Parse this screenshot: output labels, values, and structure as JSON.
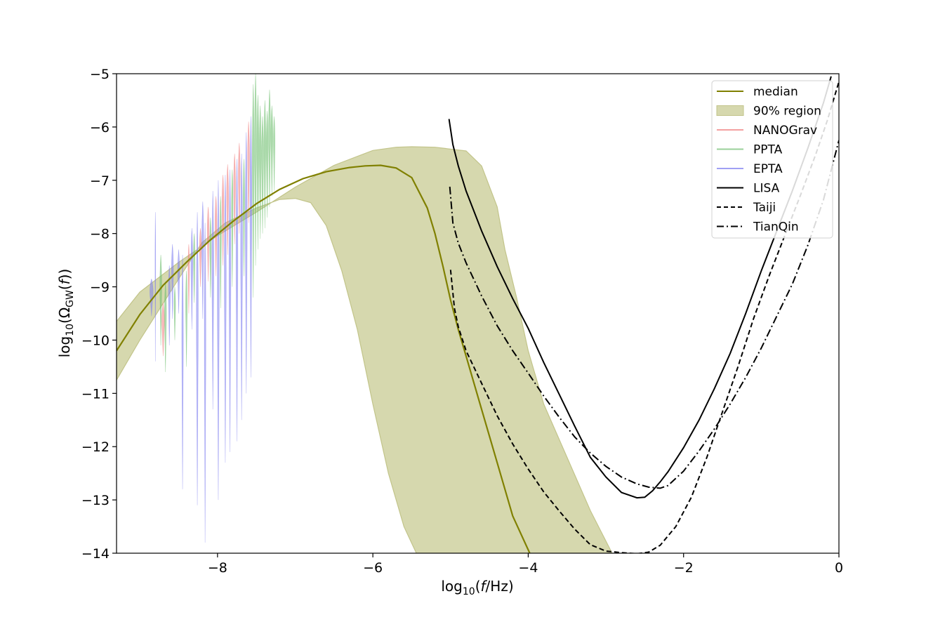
{
  "chart_data": {
    "type": "line",
    "xlabel_main": "log",
    "xlabel_sub": "10",
    "xlabel_rest_a": "(",
    "xlabel_italic": "f",
    "xlabel_rest_b": "/Hz)",
    "ylabel_main": "log",
    "ylabel_sub": "10",
    "ylabel_omega": "(Ω",
    "ylabel_gw": "GW",
    "ylabel_paren": "(",
    "ylabel_italic": "f",
    "ylabel_end": "))",
    "xlim": [
      -9.3,
      0
    ],
    "ylim": [
      -14,
      -5
    ],
    "xticks": [
      -8,
      -6,
      -4,
      -2,
      0
    ],
    "xtick_labels": [
      "−8",
      "−6",
      "−4",
      "−2",
      "0"
    ],
    "yticks": [
      -5,
      -6,
      -7,
      -8,
      -9,
      -10,
      -11,
      -12,
      -13,
      -14
    ],
    "ytick_labels": [
      "−5",
      "−6",
      "−7",
      "−8",
      "−9",
      "−10",
      "−11",
      "−12",
      "−13",
      "−14"
    ],
    "legend_position": "upper right",
    "legend": [
      {
        "label": "median",
        "kind": "line",
        "color": "#808000",
        "dash": ""
      },
      {
        "label": "90% region",
        "kind": "patch",
        "color": "#d6d8ae"
      },
      {
        "label": "NANOGrav",
        "kind": "line",
        "color": "#f4a0a0",
        "dash": ""
      },
      {
        "label": "PPTA",
        "kind": "line",
        "color": "#9ad09a",
        "dash": ""
      },
      {
        "label": "EPTA",
        "kind": "line",
        "color": "#a0a0f4",
        "dash": ""
      },
      {
        "label": "LISA",
        "kind": "line",
        "color": "#000000",
        "dash": ""
      },
      {
        "label": "Taiji",
        "kind": "line",
        "color": "#000000",
        "dash": "6,4"
      },
      {
        "label": "TianQin",
        "kind": "line",
        "color": "#000000",
        "dash": "10,4,2,4"
      }
    ],
    "series": [
      {
        "name": "median",
        "color": "#808000",
        "x": [
          -9.3,
          -9.0,
          -8.7,
          -8.4,
          -8.1,
          -7.8,
          -7.5,
          -7.2,
          -6.9,
          -6.6,
          -6.3,
          -6.1,
          -5.9,
          -5.7,
          -5.5,
          -5.3,
          -5.2,
          -5.1,
          -5.0,
          -4.9,
          -4.8,
          -4.6,
          -4.4,
          -4.2,
          -3.98
        ],
        "y": [
          -10.2,
          -9.52,
          -8.97,
          -8.54,
          -8.13,
          -7.77,
          -7.44,
          -7.17,
          -6.97,
          -6.84,
          -6.76,
          -6.73,
          -6.72,
          -6.77,
          -6.95,
          -7.52,
          -8.0,
          -8.6,
          -9.25,
          -9.8,
          -10.3,
          -11.3,
          -12.3,
          -13.3,
          -14.0
        ]
      },
      {
        "name": "90% region upper",
        "x": [
          -9.3,
          -9.0,
          -8.5,
          -8.0,
          -7.5,
          -7.0,
          -6.5,
          -6.0,
          -5.7,
          -5.5,
          -5.2,
          -4.8,
          -4.6,
          -4.4,
          -4.3,
          -4.15,
          -4.0,
          -3.8,
          -3.5,
          -3.2,
          -2.92
        ],
        "y": [
          -9.65,
          -9.1,
          -8.54,
          -8.04,
          -7.6,
          -7.13,
          -6.72,
          -6.44,
          -6.38,
          -6.37,
          -6.38,
          -6.45,
          -6.73,
          -7.5,
          -8.3,
          -9.2,
          -10.2,
          -11.2,
          -12.2,
          -13.2,
          -14.0
        ]
      },
      {
        "name": "90% region lower",
        "x": [
          -9.3,
          -9.0,
          -8.5,
          -8.2,
          -7.9,
          -7.5,
          -7.2,
          -7.0,
          -6.8,
          -6.6,
          -6.4,
          -6.2,
          -6.0,
          -5.8,
          -5.6,
          -5.44
        ],
        "y": [
          -10.75,
          -10.0,
          -8.85,
          -8.17,
          -7.8,
          -7.52,
          -7.36,
          -7.34,
          -7.42,
          -7.85,
          -8.7,
          -9.8,
          -11.2,
          -12.5,
          -13.5,
          -14.0
        ]
      },
      {
        "name": "LISA",
        "color": "#000000",
        "x": [
          -5.02,
          -4.97,
          -4.9,
          -4.8,
          -4.6,
          -4.4,
          -4.2,
          -4.0,
          -3.8,
          -3.6,
          -3.4,
          -3.2,
          -3.0,
          -2.8,
          -2.6,
          -2.5,
          -2.4,
          -2.3,
          -2.2,
          -2.0,
          -1.8,
          -1.6,
          -1.4,
          -1.2,
          -1.0,
          -0.8,
          -0.6,
          -0.4,
          -0.2,
          -0.1
        ],
        "y": [
          -5.85,
          -6.33,
          -6.73,
          -7.2,
          -7.95,
          -8.62,
          -9.22,
          -9.78,
          -10.42,
          -11.02,
          -11.62,
          -12.2,
          -12.57,
          -12.86,
          -12.96,
          -12.95,
          -12.83,
          -12.66,
          -12.47,
          -12.02,
          -11.5,
          -10.9,
          -10.25,
          -9.5,
          -8.7,
          -7.95,
          -7.2,
          -6.4,
          -5.55,
          -5.05
        ]
      },
      {
        "name": "Taiji",
        "color": "#000000",
        "x": [
          -5.0,
          -4.95,
          -4.9,
          -4.8,
          -4.6,
          -4.4,
          -4.2,
          -4.0,
          -3.8,
          -3.6,
          -3.4,
          -3.2,
          -3.0,
          -2.8,
          -2.6,
          -2.45,
          -2.3,
          -2.1,
          -1.9,
          -1.7,
          -1.5,
          -1.3,
          -1.1,
          -0.9,
          -0.7,
          -0.5,
          -0.3,
          -0.15,
          0.0
        ],
        "y": [
          -8.68,
          -9.4,
          -9.75,
          -10.2,
          -10.81,
          -11.42,
          -11.95,
          -12.42,
          -12.85,
          -13.21,
          -13.55,
          -13.84,
          -13.96,
          -13.99,
          -14.01,
          -13.98,
          -13.85,
          -13.5,
          -12.95,
          -12.2,
          -11.35,
          -10.5,
          -9.6,
          -8.8,
          -8.05,
          -7.3,
          -6.52,
          -5.88,
          -5.15
        ]
      },
      {
        "name": "TianQin",
        "color": "#000000",
        "x": [
          -5.01,
          -4.97,
          -4.9,
          -4.8,
          -4.6,
          -4.4,
          -4.2,
          -4.0,
          -3.8,
          -3.6,
          -3.4,
          -3.2,
          -3.0,
          -2.8,
          -2.6,
          -2.45,
          -2.3,
          -2.2,
          -2.0,
          -1.8,
          -1.6,
          -1.4,
          -1.2,
          -1.0,
          -0.8,
          -0.6,
          -0.4,
          -0.2,
          0.0
        ],
        "y": [
          -7.12,
          -7.8,
          -8.18,
          -8.55,
          -9.17,
          -9.73,
          -10.2,
          -10.62,
          -11.05,
          -11.45,
          -11.82,
          -12.12,
          -12.37,
          -12.57,
          -12.7,
          -12.76,
          -12.78,
          -12.73,
          -12.46,
          -12.08,
          -11.66,
          -11.2,
          -10.7,
          -10.15,
          -9.55,
          -8.95,
          -8.22,
          -7.37,
          -6.25
        ]
      }
    ],
    "pta_violins": [
      {
        "x": -8.85,
        "color": "#8080f0",
        "top": -8.85,
        "bottom": -9.55,
        "width": 0.025
      },
      {
        "x": -8.8,
        "color": "#8080f0",
        "top": -7.6,
        "bottom": -10.4,
        "width": 0.005
      },
      {
        "x": -8.73,
        "color": "#70c070",
        "top": -8.4,
        "bottom": -10.1,
        "width": 0.015
      },
      {
        "x": -8.7,
        "color": "#f08080",
        "top": -9.3,
        "bottom": -10.3,
        "width": 0.02
      },
      {
        "x": -8.67,
        "color": "#70c070",
        "top": -8.9,
        "bottom": -10.6,
        "width": 0.015
      },
      {
        "x": -8.62,
        "color": "#8080f0",
        "top": -8.6,
        "bottom": -10.1,
        "width": 0.015
      },
      {
        "x": -8.58,
        "color": "#8080f0",
        "top": -8.2,
        "bottom": -9.6,
        "width": 0.015
      },
      {
        "x": -8.55,
        "color": "#70c070",
        "top": -9.0,
        "bottom": -10.0,
        "width": 0.012
      },
      {
        "x": -8.5,
        "color": "#8080f0",
        "top": -8.3,
        "bottom": -9.5,
        "width": 0.015
      },
      {
        "x": -8.45,
        "color": "#8080f0",
        "top": -8.4,
        "bottom": -12.8,
        "width": 0.012
      },
      {
        "x": -8.4,
        "color": "#70c070",
        "top": -8.7,
        "bottom": -10.5,
        "width": 0.012
      },
      {
        "x": -8.37,
        "color": "#f08080",
        "top": -8.2,
        "bottom": -9.5,
        "width": 0.012
      },
      {
        "x": -8.33,
        "color": "#8080f0",
        "top": -7.9,
        "bottom": -9.8,
        "width": 0.015
      },
      {
        "x": -8.3,
        "color": "#70c070",
        "top": -8.0,
        "bottom": -9.3,
        "width": 0.012
      },
      {
        "x": -8.26,
        "color": "#8080f0",
        "top": -7.6,
        "bottom": -13.1,
        "width": 0.015
      },
      {
        "x": -8.22,
        "color": "#f08080",
        "top": -7.9,
        "bottom": -9.0,
        "width": 0.015
      },
      {
        "x": -8.19,
        "color": "#8080f0",
        "top": -7.4,
        "bottom": -9.6,
        "width": 0.015
      },
      {
        "x": -8.16,
        "color": "#8080f0",
        "top": -7.8,
        "bottom": -13.8,
        "width": 0.012
      },
      {
        "x": -8.12,
        "color": "#f08080",
        "top": -7.5,
        "bottom": -8.9,
        "width": 0.015
      },
      {
        "x": -8.09,
        "color": "#70c070",
        "top": -7.7,
        "bottom": -9.2,
        "width": 0.012
      },
      {
        "x": -8.06,
        "color": "#8080f0",
        "top": -7.2,
        "bottom": -11.3,
        "width": 0.015
      },
      {
        "x": -8.02,
        "color": "#f08080",
        "top": -7.3,
        "bottom": -8.8,
        "width": 0.015
      },
      {
        "x": -7.99,
        "color": "#8080f0",
        "top": -7.0,
        "bottom": -13.0,
        "width": 0.015
      },
      {
        "x": -7.96,
        "color": "#70c070",
        "top": -7.3,
        "bottom": -9.4,
        "width": 0.012
      },
      {
        "x": -7.93,
        "color": "#f08080",
        "top": -6.9,
        "bottom": -8.6,
        "width": 0.015
      },
      {
        "x": -7.9,
        "color": "#8080f0",
        "top": -6.9,
        "bottom": -12.3,
        "width": 0.015
      },
      {
        "x": -7.87,
        "color": "#f08080",
        "top": -6.7,
        "bottom": -8.4,
        "width": 0.015
      },
      {
        "x": -7.84,
        "color": "#8080f0",
        "top": -6.8,
        "bottom": -12.1,
        "width": 0.015
      },
      {
        "x": -7.81,
        "color": "#70c070",
        "top": -6.8,
        "bottom": -9.0,
        "width": 0.012
      },
      {
        "x": -7.78,
        "color": "#f08080",
        "top": -6.5,
        "bottom": -8.2,
        "width": 0.015
      },
      {
        "x": -7.75,
        "color": "#8080f0",
        "top": -6.6,
        "bottom": -11.9,
        "width": 0.015
      },
      {
        "x": -7.72,
        "color": "#f08080",
        "top": -6.3,
        "bottom": -8.0,
        "width": 0.015
      },
      {
        "x": -7.69,
        "color": "#8080f0",
        "top": -6.5,
        "bottom": -11.5,
        "width": 0.015
      },
      {
        "x": -7.66,
        "color": "#70c070",
        "top": -6.6,
        "bottom": -8.8,
        "width": 0.012
      },
      {
        "x": -7.63,
        "color": "#8080f0",
        "top": -6.1,
        "bottom": -11.0,
        "width": 0.015
      },
      {
        "x": -7.6,
        "color": "#f08080",
        "top": -5.9,
        "bottom": -7.8,
        "width": 0.015
      },
      {
        "x": -7.57,
        "color": "#8080f0",
        "top": -5.8,
        "bottom": -10.7,
        "width": 0.015
      },
      {
        "x": -7.54,
        "color": "#70c070",
        "top": -5.2,
        "bottom": -9.2,
        "width": 0.015
      },
      {
        "x": -7.51,
        "color": "#70c070",
        "top": -5.0,
        "bottom": -8.6,
        "width": 0.015
      },
      {
        "x": -7.48,
        "color": "#70c070",
        "top": -5.4,
        "bottom": -8.3,
        "width": 0.015
      },
      {
        "x": -7.45,
        "color": "#70c070",
        "top": -5.6,
        "bottom": -8.1,
        "width": 0.015
      },
      {
        "x": -7.42,
        "color": "#70c070",
        "top": -5.8,
        "bottom": -8.0,
        "width": 0.015
      },
      {
        "x": -7.39,
        "color": "#70c070",
        "top": -5.5,
        "bottom": -7.9,
        "width": 0.015
      },
      {
        "x": -7.36,
        "color": "#70c070",
        "top": -5.7,
        "bottom": -7.7,
        "width": 0.015
      },
      {
        "x": -7.33,
        "color": "#70c070",
        "top": -5.3,
        "bottom": -7.5,
        "width": 0.015
      },
      {
        "x": -7.3,
        "color": "#70c070",
        "top": -5.6,
        "bottom": -7.3,
        "width": 0.015
      },
      {
        "x": -7.27,
        "color": "#70c070",
        "top": -5.8,
        "bottom": -7.2,
        "width": 0.012
      }
    ]
  }
}
